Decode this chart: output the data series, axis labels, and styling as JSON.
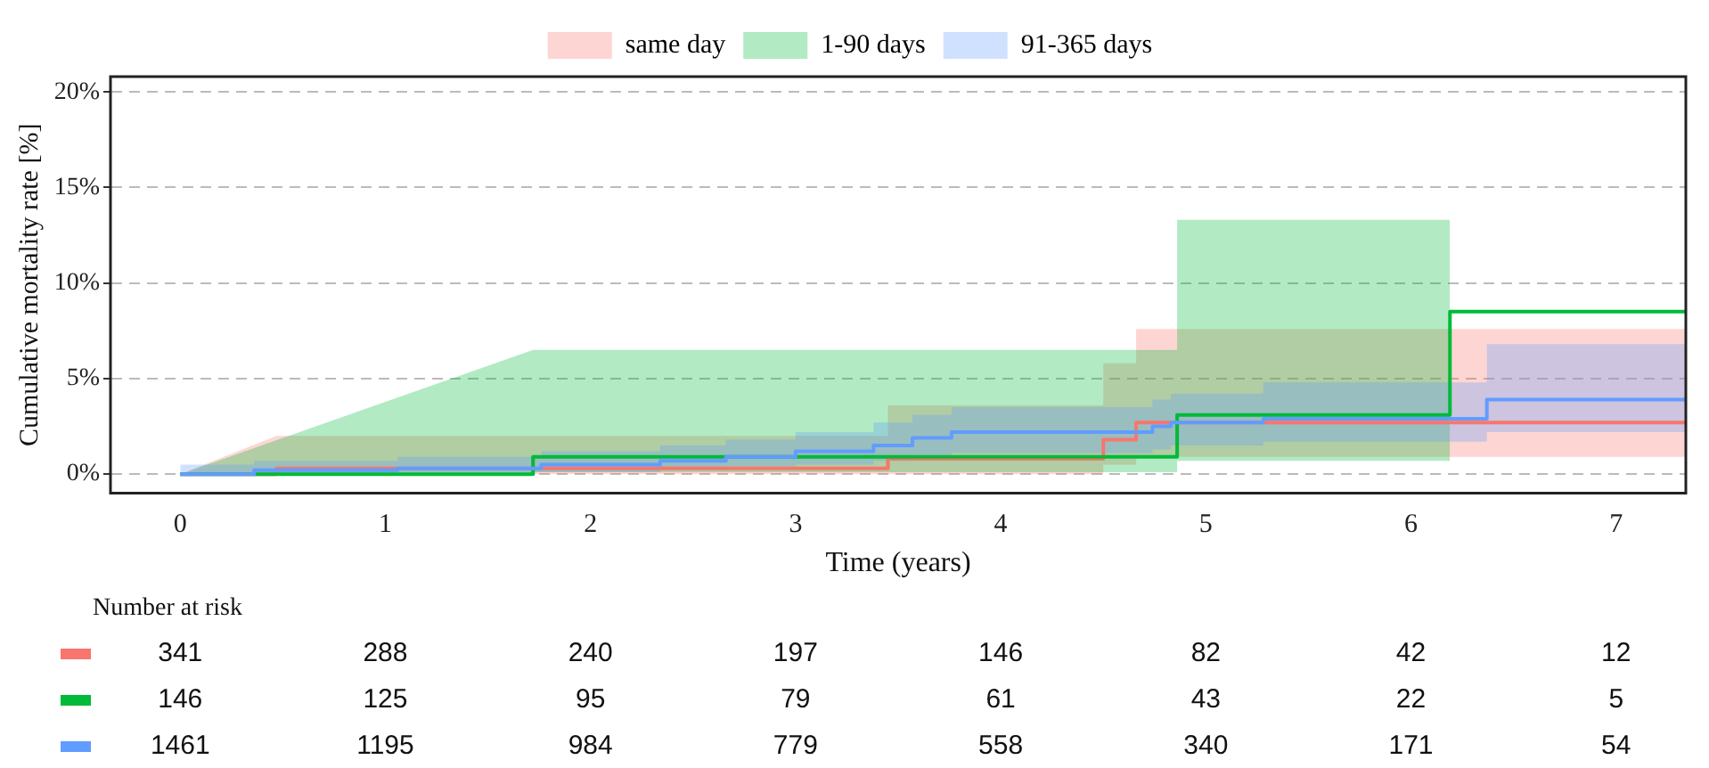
{
  "chart_data": [
    {
      "type": "line",
      "xlabel": "Time (years)",
      "ylabel": "Cumulative mortality rate [%]",
      "xlim": [
        -0.34,
        7.34
      ],
      "xticks": [
        0,
        1,
        2,
        3,
        4,
        5,
        6,
        7
      ],
      "ylim": [
        -1,
        20.8
      ],
      "yticks": [
        {
          "value": 0,
          "label": "0%"
        },
        {
          "value": 5,
          "label": "5%"
        },
        {
          "value": 10,
          "label": "10%"
        },
        {
          "value": 15,
          "label": "15%"
        },
        {
          "value": 20,
          "label": "20%"
        }
      ],
      "grid": "y",
      "legend": "top",
      "line_style": "solid",
      "series": [
        {
          "name": "same day",
          "color": "#f8766d",
          "x": [
            0,
            0.47,
            0.47,
            3.45,
            3.45,
            4.5,
            4.5,
            4.66,
            4.66,
            7.34
          ],
          "values": [
            0,
            0,
            0.3,
            0.3,
            0.8,
            0.8,
            1.8,
            1.8,
            2.7,
            2.7
          ],
          "lower": [
            0,
            0,
            0,
            0,
            0,
            0,
            0.5,
            0.5,
            0.9,
            0.9
          ],
          "upper": [
            0,
            2.0,
            2.0,
            2.0,
            3.6,
            3.6,
            5.8,
            5.8,
            7.6,
            7.6
          ]
        },
        {
          "name": "1-90 days",
          "color": "#00ba38",
          "x": [
            0,
            1.72,
            1.72,
            4.86,
            4.86,
            6.19,
            6.19,
            7.34
          ],
          "values": [
            0,
            0,
            0.9,
            0.9,
            3.1,
            3.1,
            8.5,
            8.5
          ],
          "lower": [
            0,
            0,
            0.1,
            0.1,
            0.7,
            0.7,
            null,
            null
          ],
          "upper": [
            0,
            6.5,
            6.5,
            6.5,
            13.3,
            13.3,
            null,
            null
          ]
        },
        {
          "name": "91-365 days",
          "color": "#619cff",
          "x": [
            0,
            0.36,
            0.36,
            1.06,
            1.06,
            1.76,
            1.76,
            2.34,
            2.34,
            2.66,
            2.66,
            3.0,
            3.0,
            3.38,
            3.38,
            3.57,
            3.57,
            3.76,
            3.76,
            4.74,
            4.74,
            4.83,
            4.83,
            5.28,
            5.28,
            6.37,
            6.37,
            7.34
          ],
          "values": [
            0,
            0,
            0.2,
            0.2,
            0.3,
            0.3,
            0.5,
            0.5,
            0.7,
            0.7,
            0.9,
            0.9,
            1.2,
            1.2,
            1.5,
            1.5,
            1.9,
            1.9,
            2.2,
            2.2,
            2.5,
            2.5,
            2.7,
            2.7,
            2.9,
            2.9,
            3.9,
            3.9
          ],
          "lower": [
            0,
            0,
            0,
            0,
            0.1,
            0.1,
            0.1,
            0.1,
            0.2,
            0.2,
            0.4,
            0.4,
            0.5,
            0.5,
            0.7,
            0.7,
            0.9,
            0.9,
            1.1,
            1.1,
            1.3,
            1.3,
            1.5,
            1.5,
            1.7,
            1.7,
            2.2,
            2.2
          ],
          "upper": [
            0.5,
            0.5,
            0.7,
            0.7,
            0.9,
            0.9,
            1.2,
            1.2,
            1.5,
            1.5,
            1.8,
            1.8,
            2.2,
            2.2,
            2.7,
            2.7,
            3.1,
            3.1,
            3.5,
            3.5,
            3.9,
            3.9,
            4.2,
            4.2,
            4.8,
            4.8,
            6.8,
            6.8
          ]
        }
      ]
    },
    {
      "type": "other",
      "title": "Number at risk",
      "annotations": [
        "341",
        "288",
        "240",
        "197",
        "146",
        "82",
        "42",
        "12",
        "146",
        "125",
        "95",
        "79",
        "61",
        "43",
        "22",
        "5",
        "1461",
        "1195",
        "984",
        "779",
        "558",
        "340",
        "171",
        "54"
      ]
    }
  ]
}
